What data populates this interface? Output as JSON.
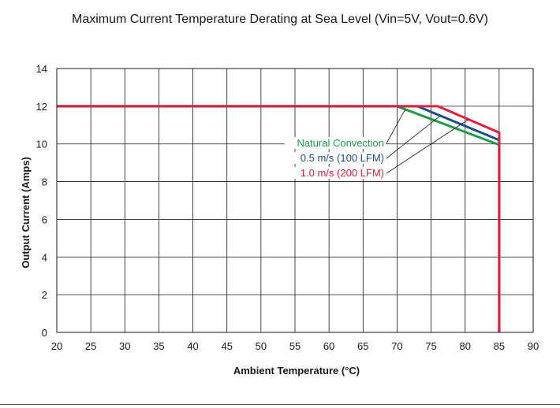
{
  "chart_data": {
    "type": "line",
    "title": "Maximum Current Temperature Derating at Sea Level (Vin=5V, Vout=0.6V)",
    "xlabel": "Ambient Temperature (°C)",
    "ylabel": "Output Current (Amps)",
    "xlim": [
      20,
      90
    ],
    "ylim": [
      0,
      14
    ],
    "xticks": [
      20,
      25,
      30,
      35,
      40,
      45,
      50,
      55,
      60,
      65,
      70,
      75,
      80,
      85,
      90
    ],
    "yticks": [
      0,
      2,
      4,
      6,
      8,
      10,
      12,
      14
    ],
    "grid": true,
    "legend": "inline-center-right",
    "series": [
      {
        "name": "Natural Convection",
        "color": "#1f9a48",
        "x": [
          20,
          70,
          85,
          85
        ],
        "y": [
          12,
          12,
          9.95,
          0
        ]
      },
      {
        "name": "0.5 m/s (100 LFM)",
        "color": "#1b4f8a",
        "x": [
          20,
          73,
          85,
          85
        ],
        "y": [
          12,
          12,
          10.2,
          0
        ]
      },
      {
        "name": "1.0 m/s (200 LFM)",
        "color": "#e0203f",
        "x": [
          20,
          76,
          85,
          85
        ],
        "y": [
          12,
          12,
          10.6,
          0
        ]
      }
    ]
  }
}
